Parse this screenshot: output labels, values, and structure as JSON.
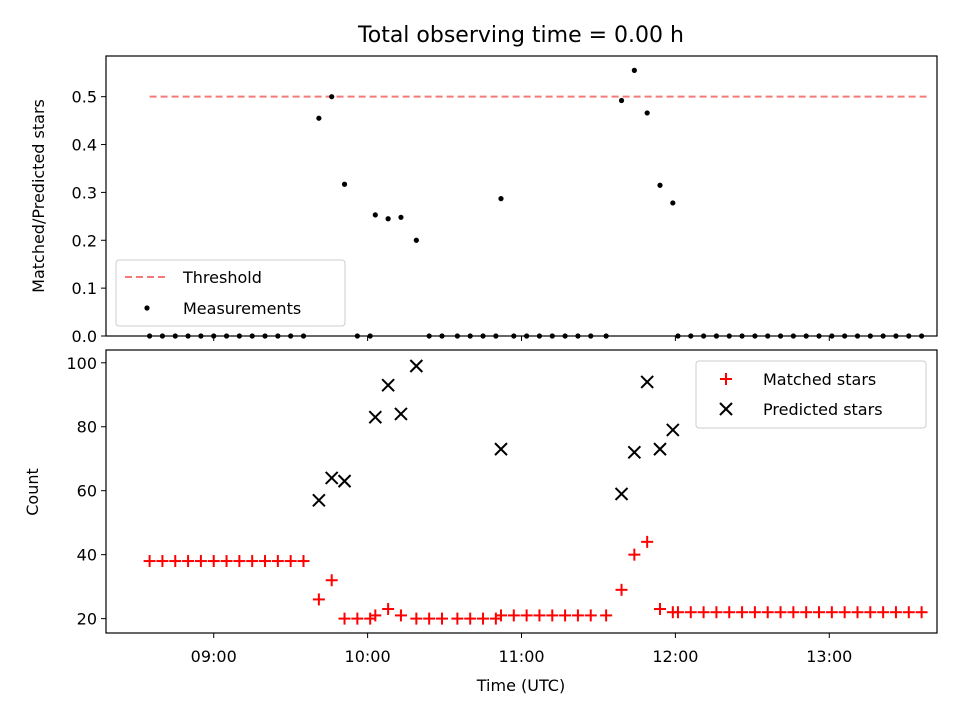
{
  "chart_data": [
    {
      "type": "scatter",
      "title": "Total observing time = 0.00 h",
      "xlabel": "",
      "ylabel": "Matched/Predicted stars",
      "ylim": [
        0,
        0.585
      ],
      "yticks": [
        "0.0",
        "0.1",
        "0.2",
        "0.3",
        "0.4",
        "0.5"
      ],
      "grid": false,
      "legend_position": "lower-left",
      "threshold": {
        "name": "Threshold",
        "y": 0.5,
        "x_start": "08:35",
        "x_end": "13:38",
        "color": "#f47a7a"
      },
      "series": [
        {
          "name": "Measurements",
          "color": "#000000",
          "points": [
            [
              "08:35",
              0
            ],
            [
              "08:40",
              0
            ],
            [
              "08:45",
              0
            ],
            [
              "08:50",
              0
            ],
            [
              "08:55",
              0
            ],
            [
              "09:00",
              0
            ],
            [
              "09:05",
              0
            ],
            [
              "09:10",
              0
            ],
            [
              "09:15",
              0
            ],
            [
              "09:20",
              0
            ],
            [
              "09:25",
              0
            ],
            [
              "09:30",
              0
            ],
            [
              "09:35",
              0
            ],
            [
              "09:41",
              0.455
            ],
            [
              "09:46",
              0.5
            ],
            [
              "09:51",
              0.317
            ],
            [
              "09:56",
              0
            ],
            [
              "10:01",
              0
            ],
            [
              "10:03",
              0.253
            ],
            [
              "10:08",
              0.245
            ],
            [
              "10:13",
              0.248
            ],
            [
              "10:19",
              0.2
            ],
            [
              "10:24",
              0
            ],
            [
              "10:29",
              0
            ],
            [
              "10:35",
              0
            ],
            [
              "10:40",
              0
            ],
            [
              "10:45",
              0
            ],
            [
              "10:50",
              0
            ],
            [
              "10:52",
              0.287
            ],
            [
              "10:57",
              0
            ],
            [
              "11:02",
              0
            ],
            [
              "11:07",
              0
            ],
            [
              "11:12",
              0
            ],
            [
              "11:17",
              0
            ],
            [
              "11:22",
              0
            ],
            [
              "11:27",
              0
            ],
            [
              "11:33",
              0
            ],
            [
              "11:39",
              0.492
            ],
            [
              "11:44",
              0.555
            ],
            [
              "11:49",
              0.466
            ],
            [
              "11:54",
              0.315
            ],
            [
              "11:59",
              0.278
            ],
            [
              "12:01",
              0
            ],
            [
              "12:06",
              0
            ],
            [
              "12:11",
              0
            ],
            [
              "12:16",
              0
            ],
            [
              "12:21",
              0
            ],
            [
              "12:26",
              0
            ],
            [
              "12:31",
              0
            ],
            [
              "12:36",
              0
            ],
            [
              "12:41",
              0
            ],
            [
              "12:46",
              0
            ],
            [
              "12:51",
              0
            ],
            [
              "12:56",
              0
            ],
            [
              "13:01",
              0
            ],
            [
              "13:06",
              0
            ],
            [
              "13:11",
              0
            ],
            [
              "13:16",
              0
            ],
            [
              "13:21",
              0
            ],
            [
              "13:26",
              0
            ],
            [
              "13:31",
              0
            ],
            [
              "13:36",
              0
            ]
          ]
        }
      ]
    },
    {
      "type": "scatter",
      "title": "",
      "xlabel": "Time (UTC)",
      "ylabel": "Count",
      "xlim": [
        "08:18",
        "13:42"
      ],
      "xticks": [
        "09:00",
        "10:00",
        "11:00",
        "12:00",
        "13:00"
      ],
      "ylim": [
        15.5,
        104
      ],
      "yticks": [
        20,
        40,
        60,
        80,
        100
      ],
      "grid": false,
      "legend_position": "upper-right",
      "series": [
        {
          "name": "Matched stars",
          "marker": "plus",
          "color": "#ff0000",
          "points": [
            [
              "08:35",
              38
            ],
            [
              "08:40",
              38
            ],
            [
              "08:45",
              38
            ],
            [
              "08:50",
              38
            ],
            [
              "08:55",
              38
            ],
            [
              "09:00",
              38
            ],
            [
              "09:05",
              38
            ],
            [
              "09:10",
              38
            ],
            [
              "09:15",
              38
            ],
            [
              "09:20",
              38
            ],
            [
              "09:25",
              38
            ],
            [
              "09:30",
              38
            ],
            [
              "09:35",
              38
            ],
            [
              "09:41",
              26
            ],
            [
              "09:46",
              32
            ],
            [
              "09:51",
              20
            ],
            [
              "09:56",
              20
            ],
            [
              "10:01",
              20
            ],
            [
              "10:03",
              21
            ],
            [
              "10:08",
              23
            ],
            [
              "10:13",
              21
            ],
            [
              "10:19",
              20
            ],
            [
              "10:24",
              20
            ],
            [
              "10:29",
              20
            ],
            [
              "10:35",
              20
            ],
            [
              "10:40",
              20
            ],
            [
              "10:45",
              20
            ],
            [
              "10:50",
              20
            ],
            [
              "10:52",
              21
            ],
            [
              "10:57",
              21
            ],
            [
              "11:02",
              21
            ],
            [
              "11:07",
              21
            ],
            [
              "11:12",
              21
            ],
            [
              "11:17",
              21
            ],
            [
              "11:22",
              21
            ],
            [
              "11:27",
              21
            ],
            [
              "11:33",
              21
            ],
            [
              "11:39",
              29
            ],
            [
              "11:44",
              40
            ],
            [
              "11:49",
              44
            ],
            [
              "11:54",
              23
            ],
            [
              "11:59",
              22
            ],
            [
              "12:01",
              22
            ],
            [
              "12:06",
              22
            ],
            [
              "12:11",
              22
            ],
            [
              "12:16",
              22
            ],
            [
              "12:21",
              22
            ],
            [
              "12:26",
              22
            ],
            [
              "12:31",
              22
            ],
            [
              "12:36",
              22
            ],
            [
              "12:41",
              22
            ],
            [
              "12:46",
              22
            ],
            [
              "12:51",
              22
            ],
            [
              "12:56",
              22
            ],
            [
              "13:01",
              22
            ],
            [
              "13:06",
              22
            ],
            [
              "13:11",
              22
            ],
            [
              "13:16",
              22
            ],
            [
              "13:21",
              22
            ],
            [
              "13:26",
              22
            ],
            [
              "13:31",
              22
            ],
            [
              "13:36",
              22
            ]
          ]
        },
        {
          "name": "Predicted stars",
          "marker": "x",
          "color": "#000000",
          "points": [
            [
              "09:41",
              57
            ],
            [
              "09:46",
              64
            ],
            [
              "09:51",
              63
            ],
            [
              "10:03",
              83
            ],
            [
              "10:08",
              93
            ],
            [
              "10:13",
              84
            ],
            [
              "10:19",
              99
            ],
            [
              "10:52",
              73
            ],
            [
              "11:39",
              59
            ],
            [
              "11:44",
              72
            ],
            [
              "11:49",
              94
            ],
            [
              "11:54",
              73
            ],
            [
              "11:59",
              79
            ]
          ]
        }
      ]
    }
  ]
}
